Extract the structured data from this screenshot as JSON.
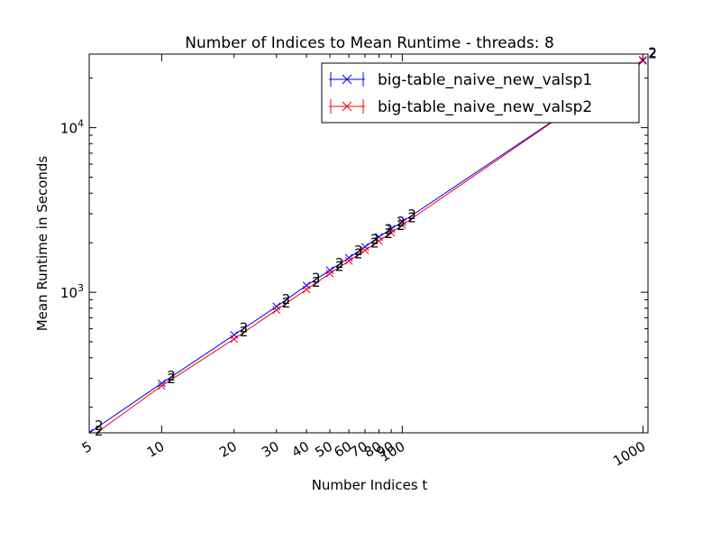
{
  "chart_data": {
    "type": "line",
    "title": "Number of Indices to Mean Runtime - threads: 8",
    "xlabel": "Number Indices t",
    "ylabel": "Mean Runtime in Seconds",
    "xscale": "log",
    "yscale": "log",
    "xlim": [
      5,
      1050
    ],
    "ylim": [
      140,
      28000
    ],
    "grid": false,
    "legend_position": "upper-right",
    "x_ticks": [
      {
        "value": 5,
        "label": "5"
      },
      {
        "value": 10,
        "label": "10"
      },
      {
        "value": 20,
        "label": "20"
      },
      {
        "value": 30,
        "label": "30"
      },
      {
        "value": 40,
        "label": "40"
      },
      {
        "value": 50,
        "label": "50"
      },
      {
        "value": 60,
        "label": "60"
      },
      {
        "value": 70,
        "label": "70"
      },
      {
        "value": 80,
        "label": "80"
      },
      {
        "value": 90,
        "label": "90"
      },
      {
        "value": 100,
        "label": "100"
      },
      {
        "value": 1000,
        "label": "1000"
      }
    ],
    "y_ticks": [
      {
        "value": 1000,
        "base": "10",
        "exp": "3"
      },
      {
        "value": 10000,
        "base": "10",
        "exp": "4"
      }
    ],
    "point_label": "2",
    "series": [
      {
        "name": "big-table_naive_new_valsp1",
        "color": "#0000ff",
        "x": [
          5,
          10,
          20,
          30,
          40,
          50,
          60,
          70,
          80,
          90,
          100,
          1000
        ],
        "y": [
          140,
          280,
          550,
          820,
          1100,
          1360,
          1620,
          1890,
          2170,
          2430,
          2680,
          25500
        ]
      },
      {
        "name": "big-table_naive_new_valsp2",
        "color": "#ff0000",
        "x": [
          5,
          10,
          20,
          30,
          40,
          50,
          60,
          70,
          80,
          90,
          100,
          1000
        ],
        "y": [
          130,
          270,
          520,
          780,
          1040,
          1300,
          1550,
          1800,
          2050,
          2300,
          2560,
          25800
        ]
      }
    ]
  }
}
